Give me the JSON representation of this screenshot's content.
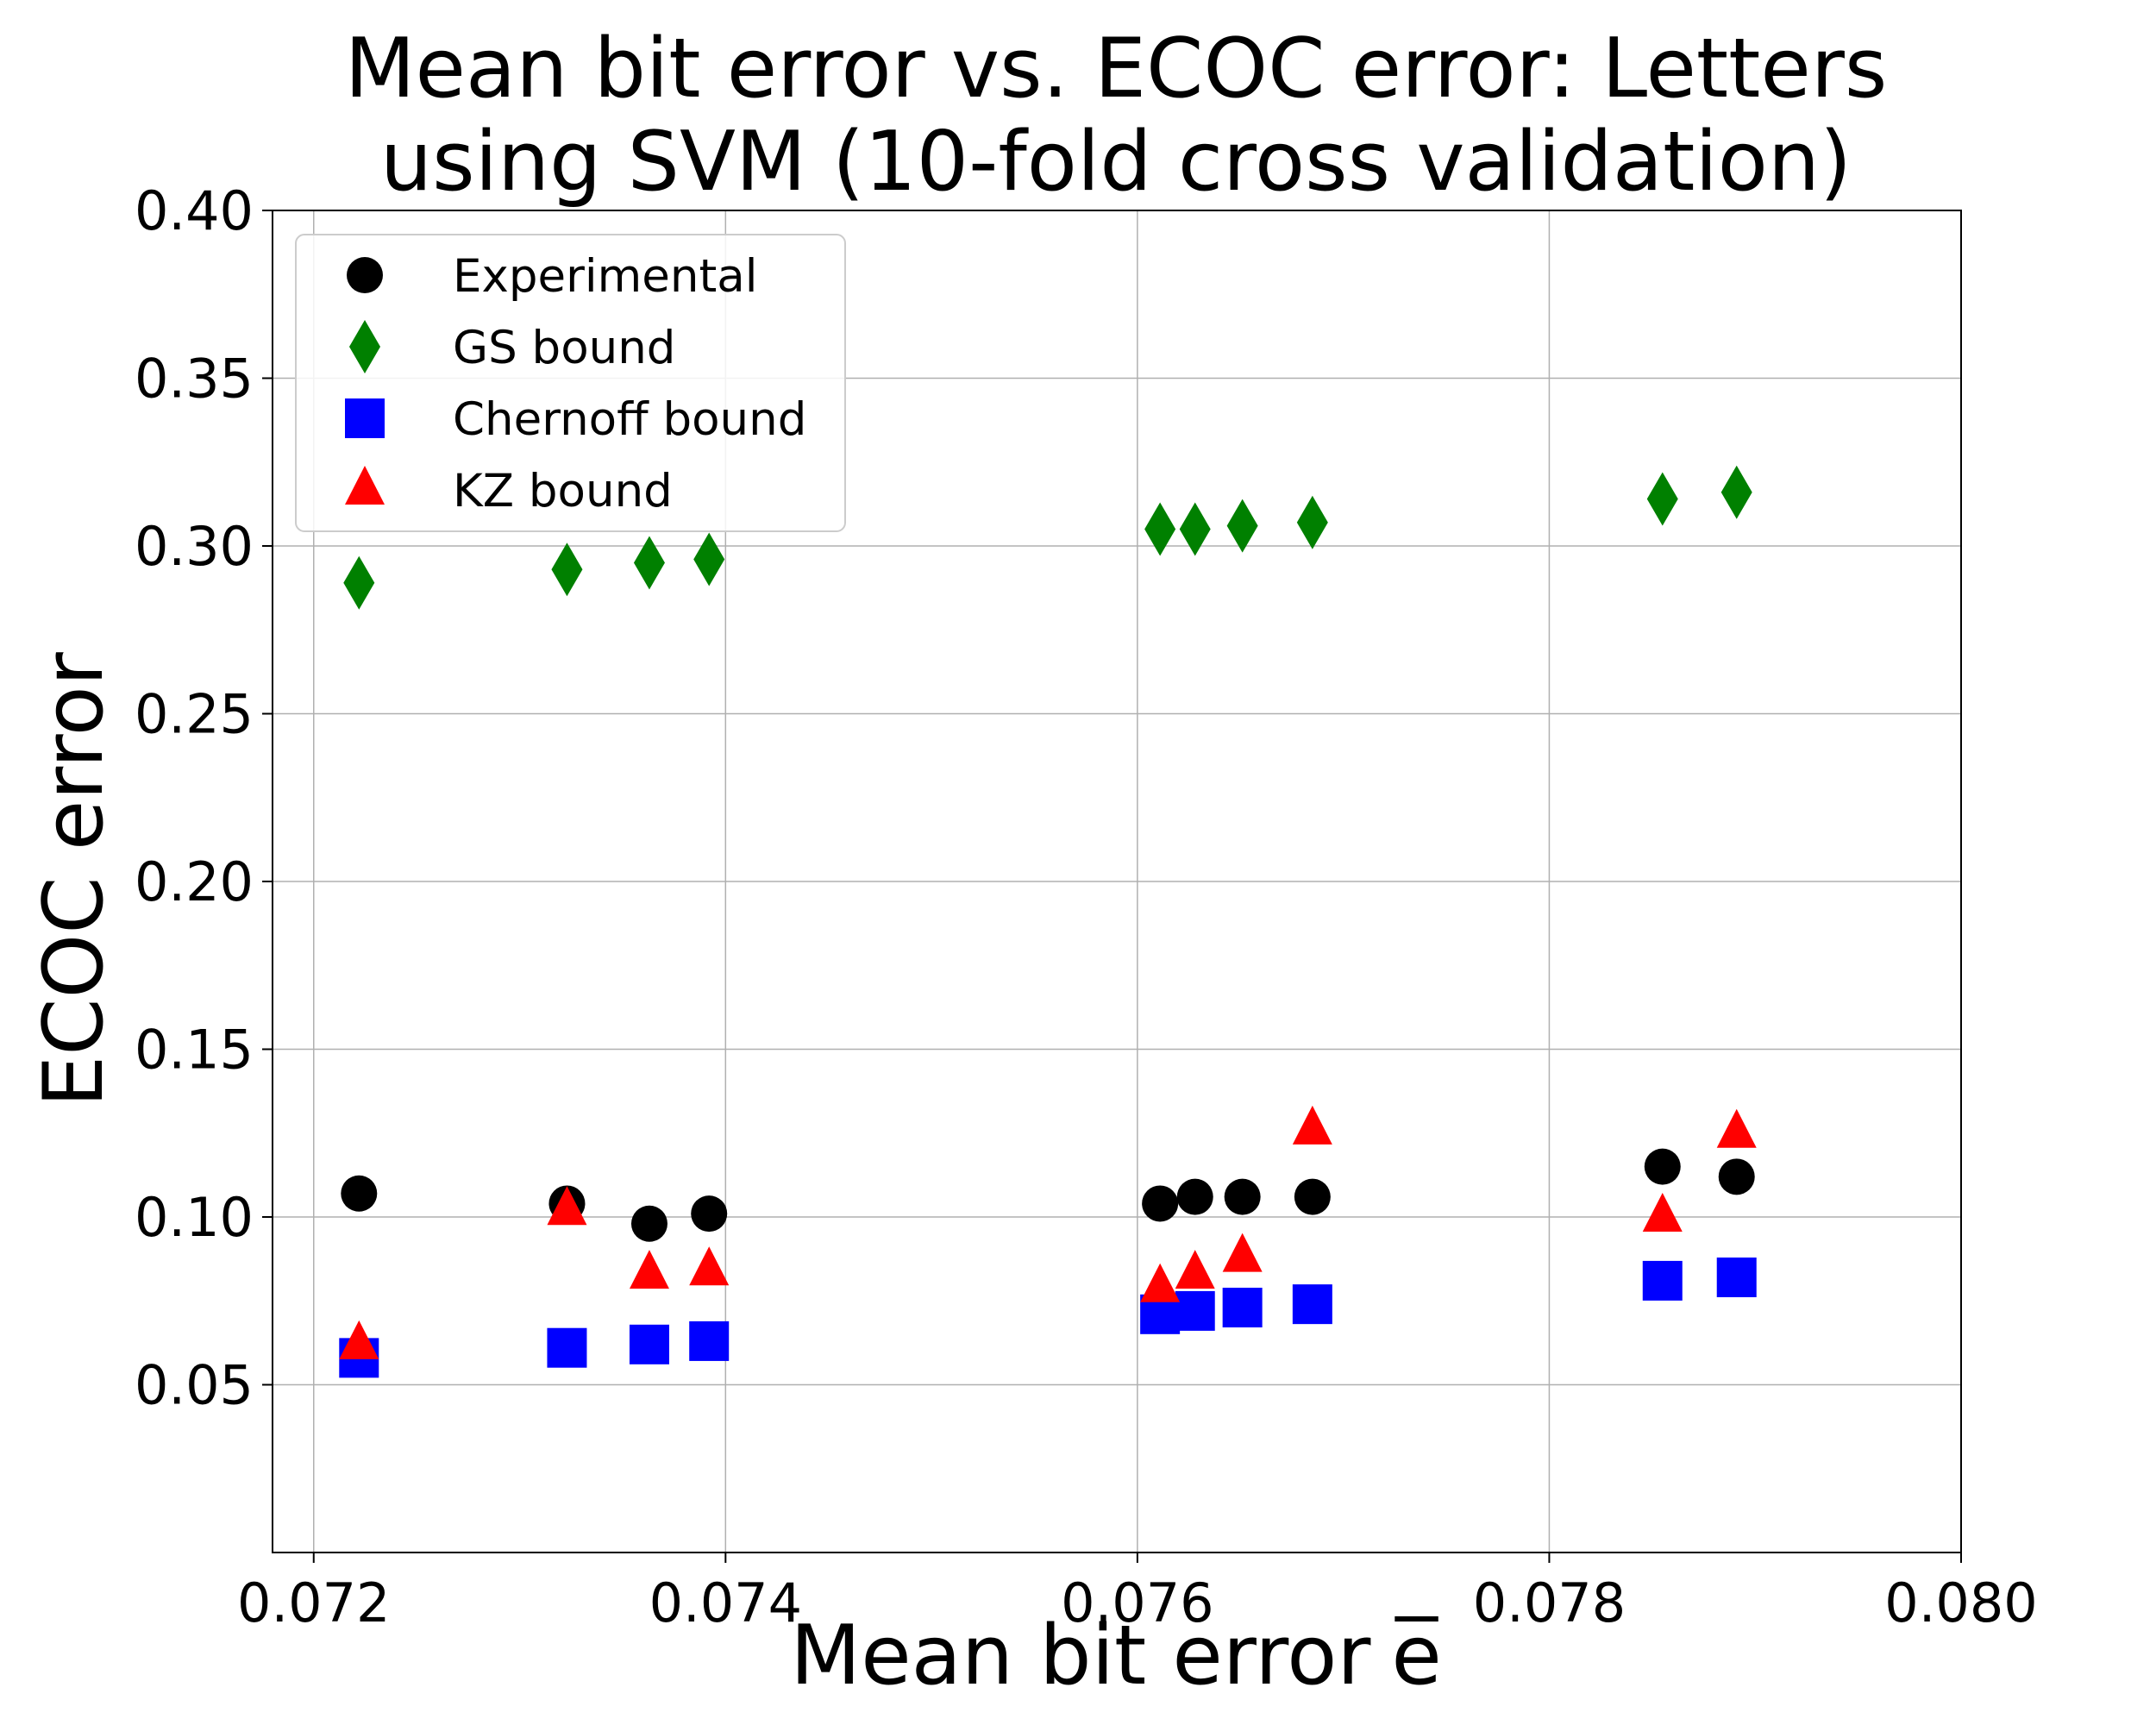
{
  "chart_data": {
    "type": "scatter",
    "title_lines": [
      "Mean bit error vs. ECOC error: Letters",
      "using SVM (10-fold cross validation)"
    ],
    "xlabel": "Mean bit error",
    "xlabel_symbol": "e",
    "ylabel": "ECOC error",
    "xlim": [
      0.0718,
      0.08
    ],
    "ylim": [
      0.0,
      0.4
    ],
    "x_ticks": [
      0.072,
      0.074,
      0.076,
      0.078,
      0.08
    ],
    "x_tick_labels": [
      "0.072",
      "0.074",
      "0.076",
      "0.078",
      "0.080"
    ],
    "y_ticks": [
      0.05,
      0.1,
      0.15,
      0.2,
      0.25,
      0.3,
      0.35,
      0.4
    ],
    "y_tick_labels": [
      "0.05",
      "0.10",
      "0.15",
      "0.20",
      "0.25",
      "0.30",
      "0.35",
      "0.40"
    ],
    "grid": true,
    "legend_position": "top-left",
    "x": [
      0.07222,
      0.07323,
      0.07363,
      0.07392,
      0.07611,
      0.07628,
      0.07651,
      0.07685,
      0.07855,
      0.07891
    ],
    "series": [
      {
        "name": "Experimental",
        "marker": "circle",
        "color": "#000000",
        "values": [
          0.107,
          0.104,
          0.098,
          0.101,
          0.104,
          0.106,
          0.106,
          0.106,
          0.115,
          0.112
        ]
      },
      {
        "name": "GS bound",
        "marker": "diamond",
        "color": "#008000",
        "values": [
          0.289,
          0.293,
          0.295,
          0.296,
          0.305,
          0.305,
          0.306,
          0.307,
          0.314,
          0.316
        ]
      },
      {
        "name": "Chernoff bound",
        "marker": "square",
        "color": "#0000ff",
        "values": [
          0.058,
          0.061,
          0.062,
          0.063,
          0.071,
          0.072,
          0.073,
          0.074,
          0.081,
          0.082
        ]
      },
      {
        "name": "KZ bound",
        "marker": "triangle",
        "color": "#ff0000",
        "values": [
          0.062,
          0.102,
          0.083,
          0.084,
          0.079,
          0.083,
          0.088,
          0.126,
          0.1,
          0.125
        ]
      }
    ]
  }
}
